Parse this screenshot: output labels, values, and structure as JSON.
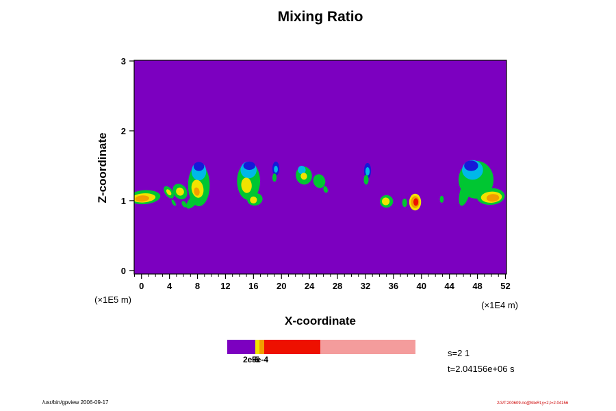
{
  "title": "Mixing Ratio",
  "chart_data": {
    "type": "heatmap",
    "title": "Mixing Ratio",
    "xlabel": "X-coordinate",
    "ylabel": "Z-coordinate",
    "x_axis_unit": "(×1E4 m)",
    "y_axis_unit": "(×1E5 m)",
    "x_ticks": [
      0,
      4,
      8,
      12,
      16,
      20,
      24,
      28,
      32,
      36,
      40,
      44,
      48,
      52
    ],
    "y_ticks": [
      0,
      1,
      2,
      3
    ],
    "xlim": [
      -1.05,
      52.15
    ],
    "ylim": [
      -0.05,
      3.01
    ],
    "palette": {
      "purple": "#7c00c0",
      "blue": "#1618d8",
      "cyan": "#00b8e8",
      "green": "#00c632",
      "yellow": "#f2e300",
      "orange": "#f29d00",
      "red": "#ee1000",
      "pink": "#f49c9c"
    },
    "colorbar": {
      "labels": [
        "2e-5",
        "5e-4"
      ],
      "segments": [
        {
          "color": "#7c00c0",
          "frac": 0.15
        },
        {
          "color": "#f2e300",
          "frac": 0.02
        },
        {
          "color": "#f29d00",
          "frac": 0.025
        },
        {
          "color": "#ee1000",
          "frac": 0.3
        },
        {
          "color": "#f49c9c",
          "frac": 0.505
        }
      ]
    },
    "clouds": [
      {
        "x": 0.4,
        "z": 1.05,
        "rx": 2.3,
        "rz": 0.1,
        "rot": -4,
        "c": "green"
      },
      {
        "x": 0.3,
        "z": 1.04,
        "rx": 1.7,
        "rz": 0.065,
        "rot": -4,
        "c": "yellow"
      },
      {
        "x": 0.1,
        "z": 1.03,
        "rx": 1.0,
        "rz": 0.045,
        "rot": -4,
        "c": "orange"
      },
      {
        "x": 3.9,
        "z": 1.12,
        "rx": 0.55,
        "rz": 0.1,
        "rot": -35,
        "c": "green"
      },
      {
        "x": 3.9,
        "z": 1.12,
        "rx": 0.28,
        "rz": 0.05,
        "rot": -35,
        "c": "yellow"
      },
      {
        "x": 4.6,
        "z": 0.97,
        "rx": 0.22,
        "rz": 0.05,
        "rot": -30,
        "c": "green"
      },
      {
        "x": 5.5,
        "z": 1.13,
        "rx": 0.95,
        "rz": 0.12,
        "rot": -38,
        "c": "green"
      },
      {
        "x": 5.5,
        "z": 1.13,
        "rx": 0.55,
        "rz": 0.06,
        "rot": -38,
        "c": "yellow"
      },
      {
        "x": 6.1,
        "z": 0.95,
        "rx": 0.3,
        "rz": 0.05,
        "rot": -30,
        "c": "green"
      },
      {
        "x": 8.2,
        "z": 1.22,
        "rx": 1.55,
        "rz": 0.3,
        "rot": 0,
        "c": "green"
      },
      {
        "x": 7.4,
        "z": 1.0,
        "rx": 0.6,
        "rz": 0.14,
        "rot": 40,
        "c": "green"
      },
      {
        "x": 8.2,
        "z": 1.42,
        "rx": 1.05,
        "rz": 0.13,
        "rot": 0,
        "c": "cyan"
      },
      {
        "x": 8.2,
        "z": 1.49,
        "rx": 0.75,
        "rz": 0.065,
        "rot": 0,
        "c": "blue"
      },
      {
        "x": 8.0,
        "z": 1.17,
        "rx": 0.85,
        "rz": 0.13,
        "rot": -10,
        "c": "yellow"
      },
      {
        "x": 7.9,
        "z": 1.13,
        "rx": 0.4,
        "rz": 0.06,
        "rot": -10,
        "c": "orange"
      },
      {
        "x": 15.3,
        "z": 1.28,
        "rx": 1.65,
        "rz": 0.27,
        "rot": 0,
        "c": "green"
      },
      {
        "x": 15.3,
        "z": 1.44,
        "rx": 1.15,
        "rz": 0.12,
        "rot": 0,
        "c": "cyan"
      },
      {
        "x": 15.4,
        "z": 1.5,
        "rx": 0.85,
        "rz": 0.06,
        "rot": 0,
        "c": "blue"
      },
      {
        "x": 15.0,
        "z": 1.22,
        "rx": 0.75,
        "rz": 0.11,
        "rot": -5,
        "c": "yellow"
      },
      {
        "x": 16.2,
        "z": 1.02,
        "rx": 1.1,
        "rz": 0.09,
        "rot": -8,
        "c": "green"
      },
      {
        "x": 16.0,
        "z": 1.01,
        "rx": 0.5,
        "rz": 0.05,
        "rot": -8,
        "c": "yellow"
      },
      {
        "x": 19.2,
        "z": 1.46,
        "rx": 0.5,
        "rz": 0.1,
        "rot": 0,
        "c": "blue"
      },
      {
        "x": 19.2,
        "z": 1.45,
        "rx": 0.28,
        "rz": 0.05,
        "rot": 0,
        "c": "cyan"
      },
      {
        "x": 19.0,
        "z": 1.33,
        "rx": 0.3,
        "rz": 0.06,
        "rot": 0,
        "c": "green"
      },
      {
        "x": 23.2,
        "z": 1.36,
        "rx": 1.15,
        "rz": 0.13,
        "rot": -12,
        "c": "green"
      },
      {
        "x": 22.9,
        "z": 1.44,
        "rx": 0.55,
        "rz": 0.06,
        "rot": -12,
        "c": "cyan"
      },
      {
        "x": 23.2,
        "z": 1.35,
        "rx": 0.45,
        "rz": 0.05,
        "rot": -12,
        "c": "yellow"
      },
      {
        "x": 25.4,
        "z": 1.28,
        "rx": 0.85,
        "rz": 0.1,
        "rot": -18,
        "c": "green"
      },
      {
        "x": 26.3,
        "z": 1.16,
        "rx": 0.3,
        "rz": 0.05,
        "rot": -18,
        "c": "green"
      },
      {
        "x": 32.3,
        "z": 1.43,
        "rx": 0.5,
        "rz": 0.11,
        "rot": 0,
        "c": "blue"
      },
      {
        "x": 32.3,
        "z": 1.42,
        "rx": 0.3,
        "rz": 0.06,
        "rot": 0,
        "c": "cyan"
      },
      {
        "x": 32.1,
        "z": 1.3,
        "rx": 0.35,
        "rz": 0.07,
        "rot": 0,
        "c": "green"
      },
      {
        "x": 35.0,
        "z": 0.99,
        "rx": 0.95,
        "rz": 0.09,
        "rot": -5,
        "c": "green"
      },
      {
        "x": 34.9,
        "z": 0.99,
        "rx": 0.55,
        "rz": 0.055,
        "rot": -5,
        "c": "yellow"
      },
      {
        "x": 37.6,
        "z": 0.97,
        "rx": 0.35,
        "rz": 0.06,
        "rot": 0,
        "c": "green"
      },
      {
        "x": 39.1,
        "z": 0.98,
        "rx": 0.85,
        "rz": 0.12,
        "rot": 0,
        "c": "yellow"
      },
      {
        "x": 39.1,
        "z": 0.98,
        "rx": 0.6,
        "rz": 0.085,
        "rot": 0,
        "c": "orange"
      },
      {
        "x": 39.2,
        "z": 0.98,
        "rx": 0.35,
        "rz": 0.055,
        "rot": 0,
        "c": "red"
      },
      {
        "x": 42.9,
        "z": 1.02,
        "rx": 0.28,
        "rz": 0.05,
        "rot": 0,
        "c": "green"
      },
      {
        "x": 47.8,
        "z": 1.3,
        "rx": 2.5,
        "rz": 0.27,
        "rot": 0,
        "c": "green"
      },
      {
        "x": 46.2,
        "z": 1.12,
        "rx": 0.7,
        "rz": 0.2,
        "rot": 15,
        "c": "green"
      },
      {
        "x": 47.3,
        "z": 1.44,
        "rx": 1.5,
        "rz": 0.14,
        "rot": 0,
        "c": "cyan"
      },
      {
        "x": 47.1,
        "z": 1.5,
        "rx": 1.0,
        "rz": 0.075,
        "rot": 0,
        "c": "blue"
      },
      {
        "x": 49.9,
        "z": 1.06,
        "rx": 2.0,
        "rz": 0.12,
        "rot": -3,
        "c": "green"
      },
      {
        "x": 50.0,
        "z": 1.05,
        "rx": 1.5,
        "rz": 0.08,
        "rot": -3,
        "c": "yellow"
      },
      {
        "x": 50.2,
        "z": 1.04,
        "rx": 0.9,
        "rz": 0.055,
        "rot": -3,
        "c": "orange"
      }
    ]
  },
  "annotations": {
    "s_label": "s=2 1",
    "t_label": "t=2.04156e+06 s"
  },
  "footer": {
    "left": "/usr/bin/gpview 2006-09-17",
    "right": "2/3/T:200609.nc@MixRt,y=2,t=2.04156"
  }
}
